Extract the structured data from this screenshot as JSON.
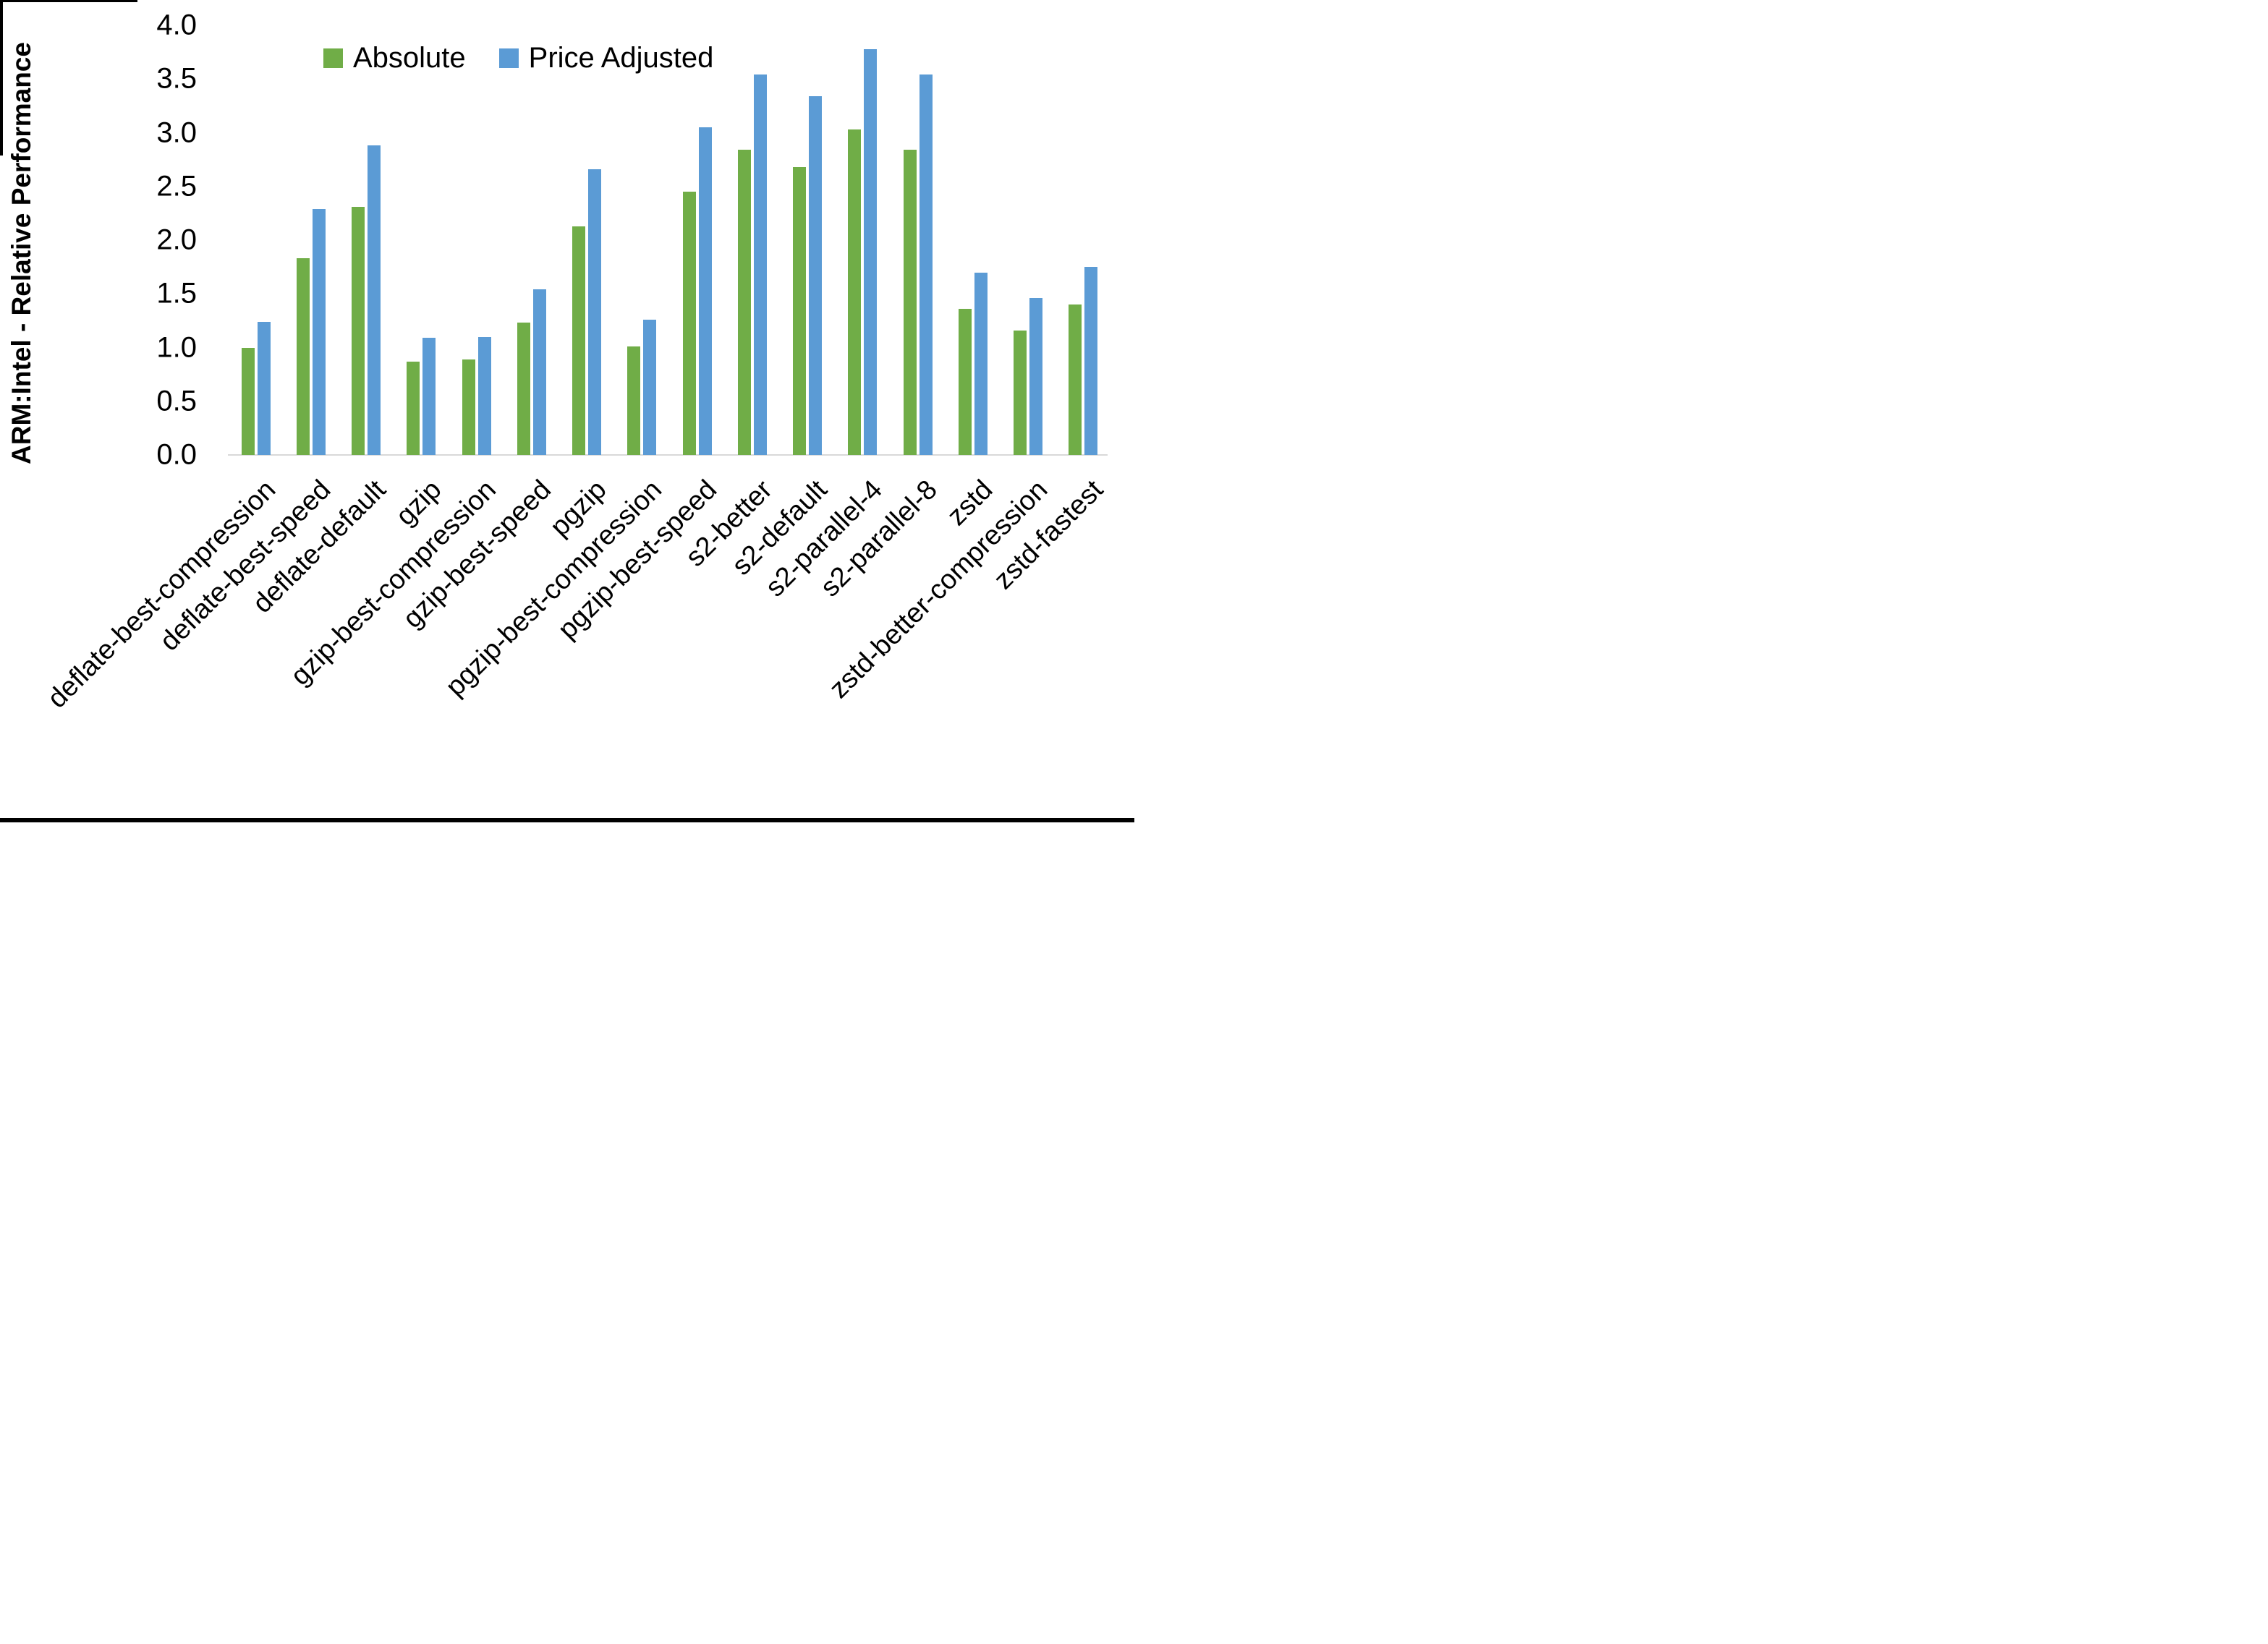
{
  "chart_data": {
    "type": "bar",
    "title": "",
    "xlabel": "",
    "ylabel": "ARM:Intel - Relative Performance",
    "ylim": [
      0.0,
      4.0
    ],
    "ytick_step": 0.5,
    "yticks": [
      "0.0",
      "0.5",
      "1.0",
      "1.5",
      "2.0",
      "2.5",
      "3.0",
      "3.5",
      "4.0"
    ],
    "grid": false,
    "legend_position": "top-center",
    "categories": [
      "deflate-best-compression",
      "deflate-best-speed",
      "deflate-default",
      "gzip",
      "gzip-best-compression",
      "gzip-best-speed",
      "pgzip",
      "pgzip-best-compression",
      "pgzip-best-speed",
      "s2-better",
      "s2-default",
      "s2-parallel-4",
      "s2-parallel-8",
      "zstd",
      "zstd-better-compression",
      "zstd-fastest"
    ],
    "series": [
      {
        "name": "Absolute",
        "color": "#70AD47",
        "values": [
          1.0,
          1.83,
          2.31,
          0.87,
          0.89,
          1.23,
          2.13,
          1.01,
          2.45,
          2.84,
          2.68,
          3.03,
          2.84,
          1.36,
          1.16,
          1.4
        ]
      },
      {
        "name": "Price Adjusted",
        "color": "#5B9BD5",
        "values": [
          1.24,
          2.29,
          2.88,
          1.09,
          1.1,
          1.54,
          2.66,
          1.26,
          3.05,
          3.54,
          3.34,
          3.78,
          3.54,
          1.7,
          1.46,
          1.75
        ]
      }
    ]
  },
  "colors": {
    "background": "#FFFFFF",
    "axis_line": "#D9D9D9",
    "text": "#000000",
    "border": "#000000"
  }
}
